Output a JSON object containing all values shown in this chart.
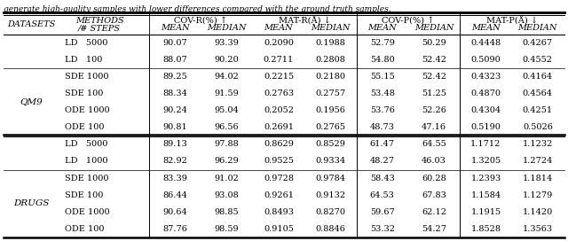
{
  "caption": "generate high-quality samples with lower differences compared with the ground truth samples.",
  "rows": [
    [
      "",
      "LD   5000",
      "90.07",
      "93.39",
      "0.2090",
      "0.1988",
      "52.79",
      "50.29",
      "0.4448",
      "0.4267"
    ],
    [
      "",
      "LD   100",
      "88.07",
      "90.20",
      "0.2711",
      "0.2808",
      "54.80",
      "52.42",
      "0.5090",
      "0.4552"
    ],
    [
      "QM9",
      "SDE 1000",
      "89.25",
      "94.02",
      "0.2215",
      "0.2180",
      "55.15",
      "52.42",
      "0.4323",
      "0.4164"
    ],
    [
      "",
      "SDE 100",
      "88.34",
      "91.59",
      "0.2763",
      "0.2757",
      "53.48",
      "51.25",
      "0.4870",
      "0.4564"
    ],
    [
      "",
      "ODE 1000",
      "90.24",
      "95.04",
      "0.2052",
      "0.1956",
      "53.76",
      "52.26",
      "0.4304",
      "0.4251"
    ],
    [
      "",
      "ODE 100",
      "90.81",
      "96.56",
      "0.2691",
      "0.2765",
      "48.73",
      "47.16",
      "0.5190",
      "0.5026"
    ],
    [
      "",
      "LD   5000",
      "89.13",
      "97.88",
      "0.8629",
      "0.8529",
      "61.47",
      "64.55",
      "1.1712",
      "1.1232"
    ],
    [
      "",
      "LD   1000",
      "82.92",
      "96.29",
      "0.9525",
      "0.9334",
      "48.27",
      "46.03",
      "1.3205",
      "1.2724"
    ],
    [
      "Drugs",
      "SDE 1000",
      "83.39",
      "91.02",
      "0.9728",
      "0.9784",
      "58.43",
      "60.28",
      "1.2393",
      "1.1814"
    ],
    [
      "",
      "SDE 100",
      "86.44",
      "93.08",
      "0.9261",
      "0.9132",
      "64.53",
      "67.83",
      "1.1584",
      "1.1279"
    ],
    [
      "",
      "ODE 1000",
      "90.64",
      "98.85",
      "0.8493",
      "0.8270",
      "59.67",
      "62.12",
      "1.1915",
      "1.1420"
    ],
    [
      "",
      "ODE 100",
      "87.76",
      "98.59",
      "0.9105",
      "0.8846",
      "53.32",
      "54.27",
      "1.8528",
      "1.3563"
    ]
  ],
  "background_color": "#ffffff",
  "text_color": "#000000"
}
